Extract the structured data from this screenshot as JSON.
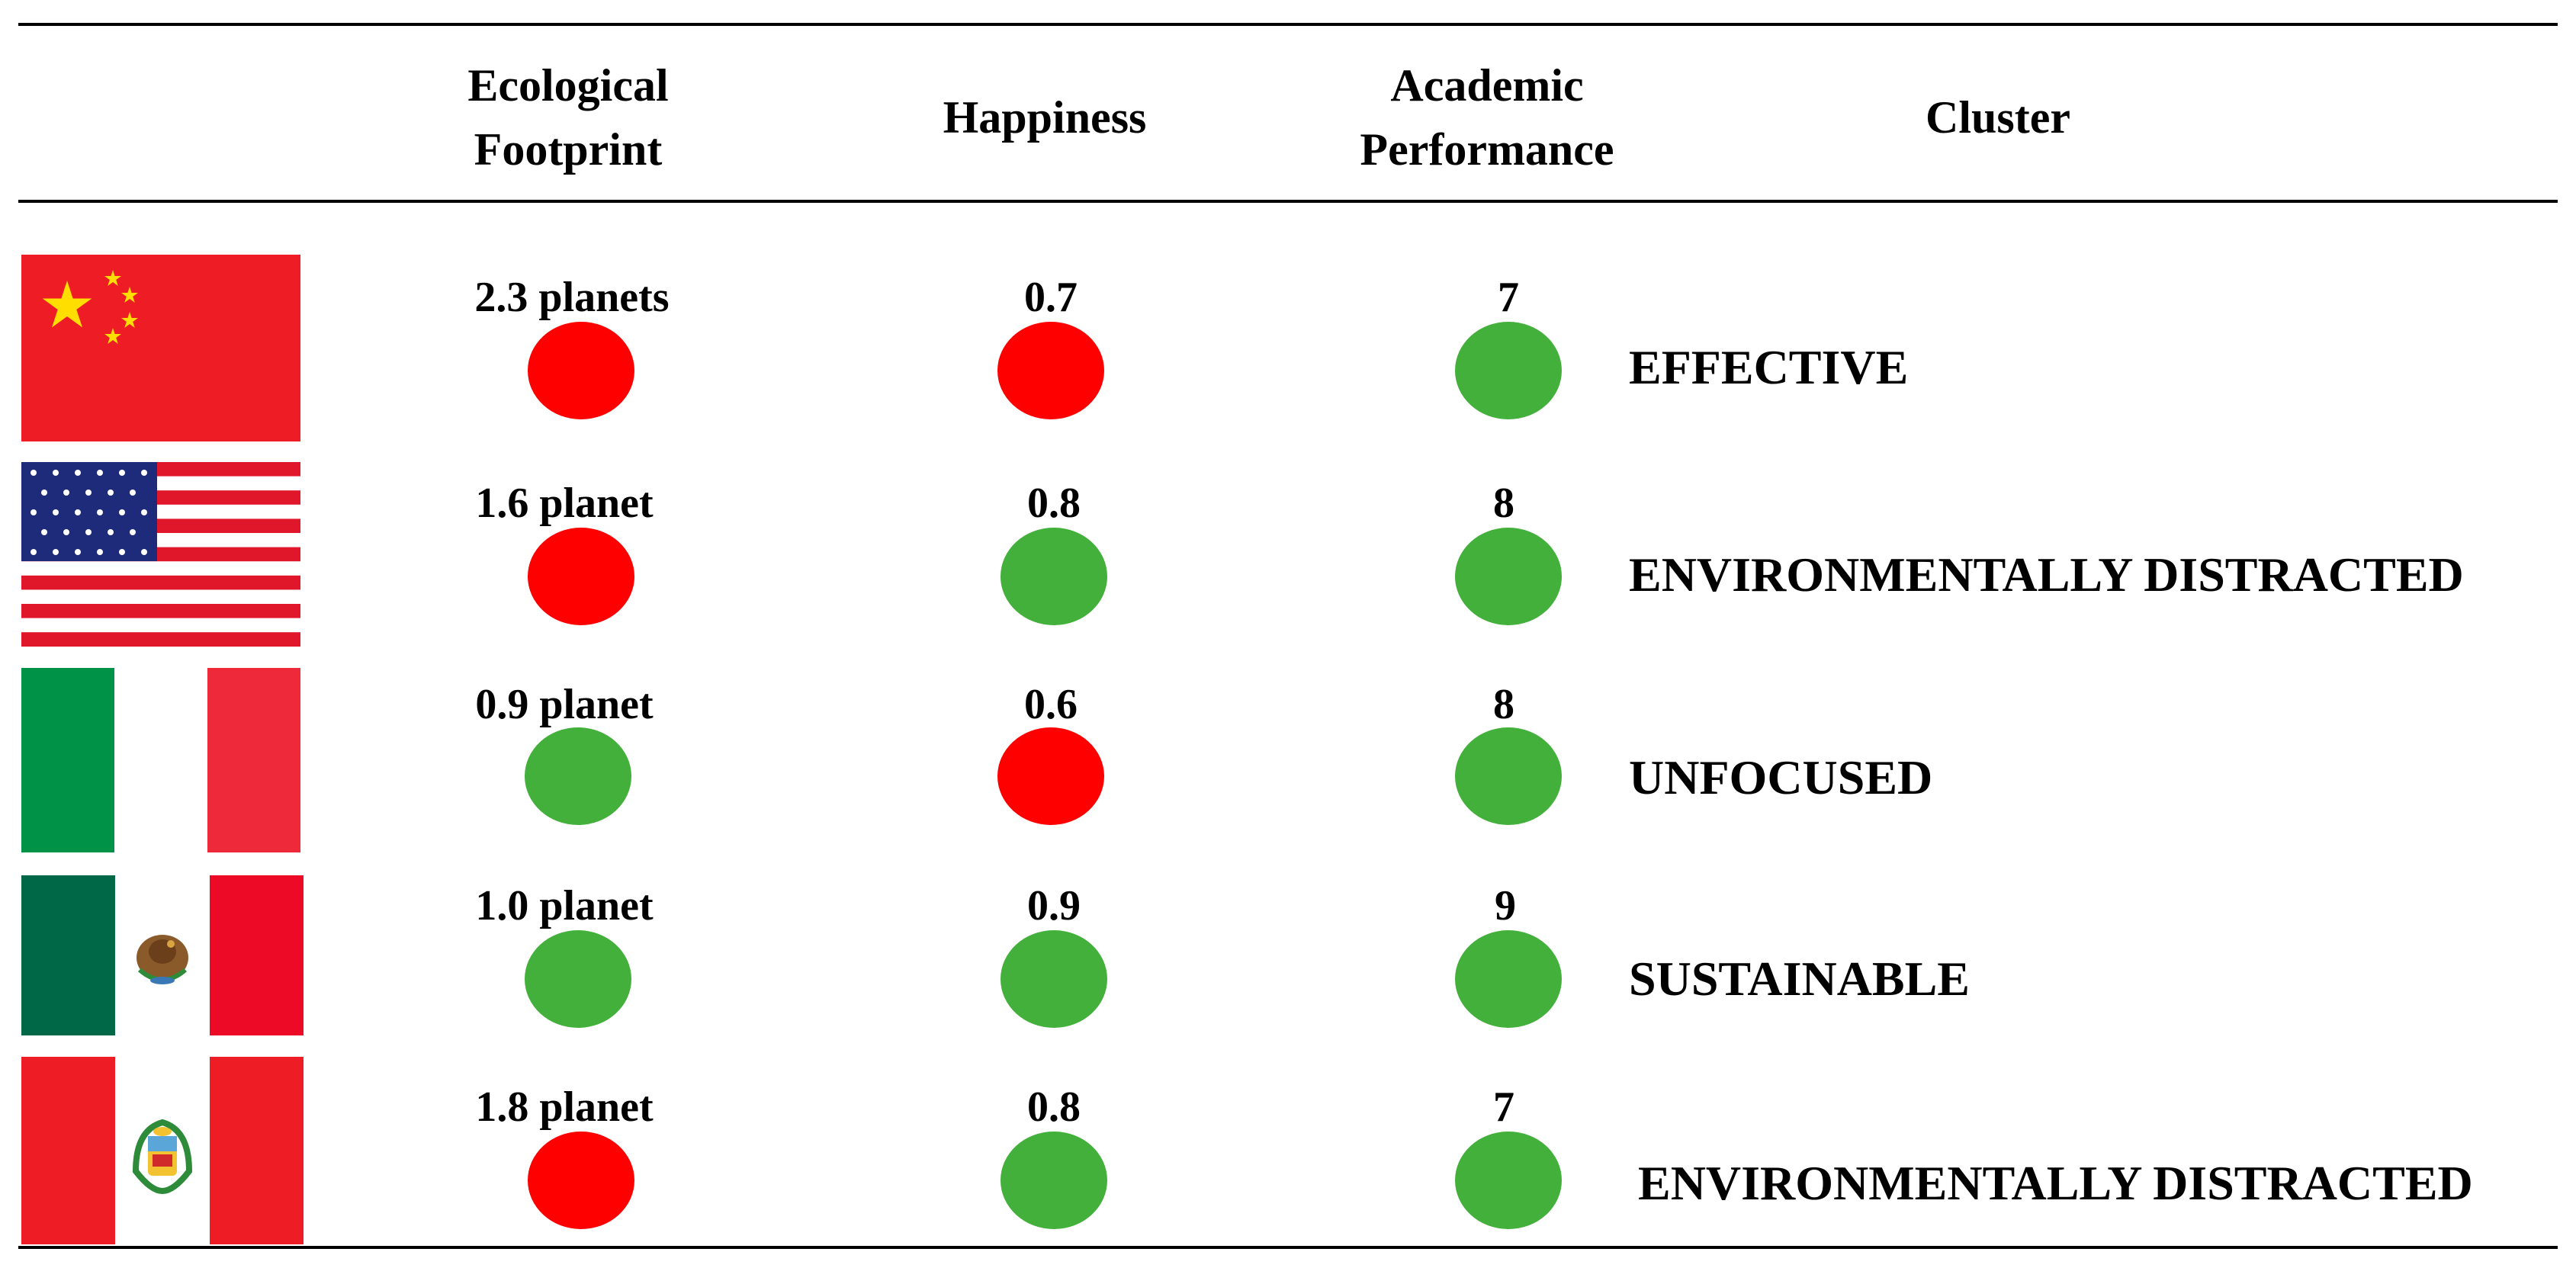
{
  "header": {
    "col1_line1": "Ecological",
    "col1_line2": "Footprint",
    "col2": "Happiness",
    "col3_line1": "Academic",
    "col3_line2": "Performance",
    "col4": "Cluster"
  },
  "colors": {
    "red": "#ff0000",
    "green": "#44b03c"
  },
  "chart_data": {
    "type": "table",
    "columns": [
      "Ecological Footprint",
      "Happiness",
      "Academic Performance",
      "Cluster"
    ],
    "rows": [
      {
        "flag": "china-flag",
        "footprint": "2.3 planets",
        "footprint_status": "red",
        "happiness": "0.7",
        "happiness_status": "red",
        "academic": "7",
        "academic_status": "green",
        "cluster": "EFFECTIVE"
      },
      {
        "flag": "usa-flag",
        "footprint": "1.6 planet",
        "footprint_status": "red",
        "happiness": "0.8",
        "happiness_status": "green",
        "academic": "8",
        "academic_status": "green",
        "cluster": "ENVIRONMENTALLY DISTRACTED"
      },
      {
        "flag": "italy-flag",
        "footprint": "0.9 planet",
        "footprint_status": "green",
        "happiness": "0.6",
        "happiness_status": "red",
        "academic": "8",
        "academic_status": "green",
        "cluster": "UNFOCUSED"
      },
      {
        "flag": "mexico-flag",
        "footprint": "1.0 planet",
        "footprint_status": "green",
        "happiness": "0.9",
        "happiness_status": "green",
        "academic": "9",
        "academic_status": "green",
        "cluster": "SUSTAINABLE"
      },
      {
        "flag": "peru-flag",
        "footprint": "1.8 planet",
        "footprint_status": "red",
        "happiness": "0.8",
        "happiness_status": "green",
        "academic": "7",
        "academic_status": "green",
        "cluster": "ENVIRONMENTALLY DISTRACTED"
      }
    ]
  }
}
